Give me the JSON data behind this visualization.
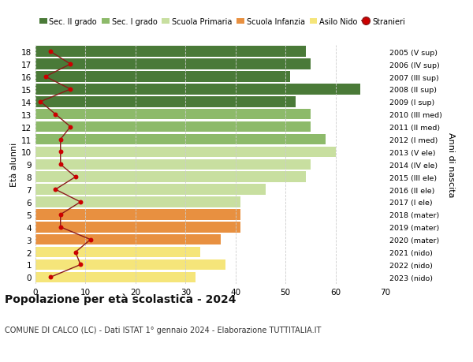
{
  "ages": [
    0,
    1,
    2,
    3,
    4,
    5,
    6,
    7,
    8,
    9,
    10,
    11,
    12,
    13,
    14,
    15,
    16,
    17,
    18
  ],
  "bar_values": [
    32,
    38,
    33,
    37,
    41,
    41,
    41,
    46,
    54,
    55,
    60,
    58,
    55,
    55,
    52,
    65,
    51,
    55,
    54
  ],
  "bar_colors": [
    "#f5e57a",
    "#f5e57a",
    "#f5e57a",
    "#e89040",
    "#e89040",
    "#e89040",
    "#c8dfa0",
    "#c8dfa0",
    "#c8dfa0",
    "#c8dfa0",
    "#c8dfa0",
    "#8dba6a",
    "#8dba6a",
    "#8dba6a",
    "#4a7a38",
    "#4a7a38",
    "#4a7a38",
    "#4a7a38",
    "#4a7a38"
  ],
  "stranieri_values": [
    3,
    9,
    8,
    11,
    5,
    5,
    9,
    4,
    8,
    5,
    5,
    5,
    7,
    4,
    1,
    7,
    2,
    7,
    3
  ],
  "right_labels": [
    "2023 (nido)",
    "2022 (nido)",
    "2021 (nido)",
    "2020 (mater)",
    "2019 (mater)",
    "2018 (mater)",
    "2017 (I ele)",
    "2016 (II ele)",
    "2015 (III ele)",
    "2014 (IV ele)",
    "2013 (V ele)",
    "2012 (I med)",
    "2011 (II med)",
    "2010 (III med)",
    "2009 (I sup)",
    "2008 (II sup)",
    "2007 (III sup)",
    "2006 (IV sup)",
    "2005 (V sup)"
  ],
  "legend_labels": [
    "Sec. II grado",
    "Sec. I grado",
    "Scuola Primaria",
    "Scuola Infanzia",
    "Asilo Nido",
    "Stranieri"
  ],
  "legend_colors": [
    "#4a7a38",
    "#8dba6a",
    "#c8dfa0",
    "#e89040",
    "#f5e57a",
    "#cc0000"
  ],
  "title": "Popolazione per età scolastica - 2024",
  "subtitle": "COMUNE DI CALCO (LC) - Dati ISTAT 1° gennaio 2024 - Elaborazione TUTTITALIA.IT",
  "ylabel_left": "Età alunni",
  "ylabel_right": "Anni di nascita",
  "xlim": [
    0,
    70
  ],
  "xticks": [
    0,
    10,
    20,
    30,
    40,
    50,
    60,
    70
  ],
  "bar_height": 0.85,
  "background_color": "#ffffff",
  "grid_color": "#cccccc",
  "stranieri_line_color": "#8b1a1a",
  "stranieri_dot_color": "#cc0000"
}
